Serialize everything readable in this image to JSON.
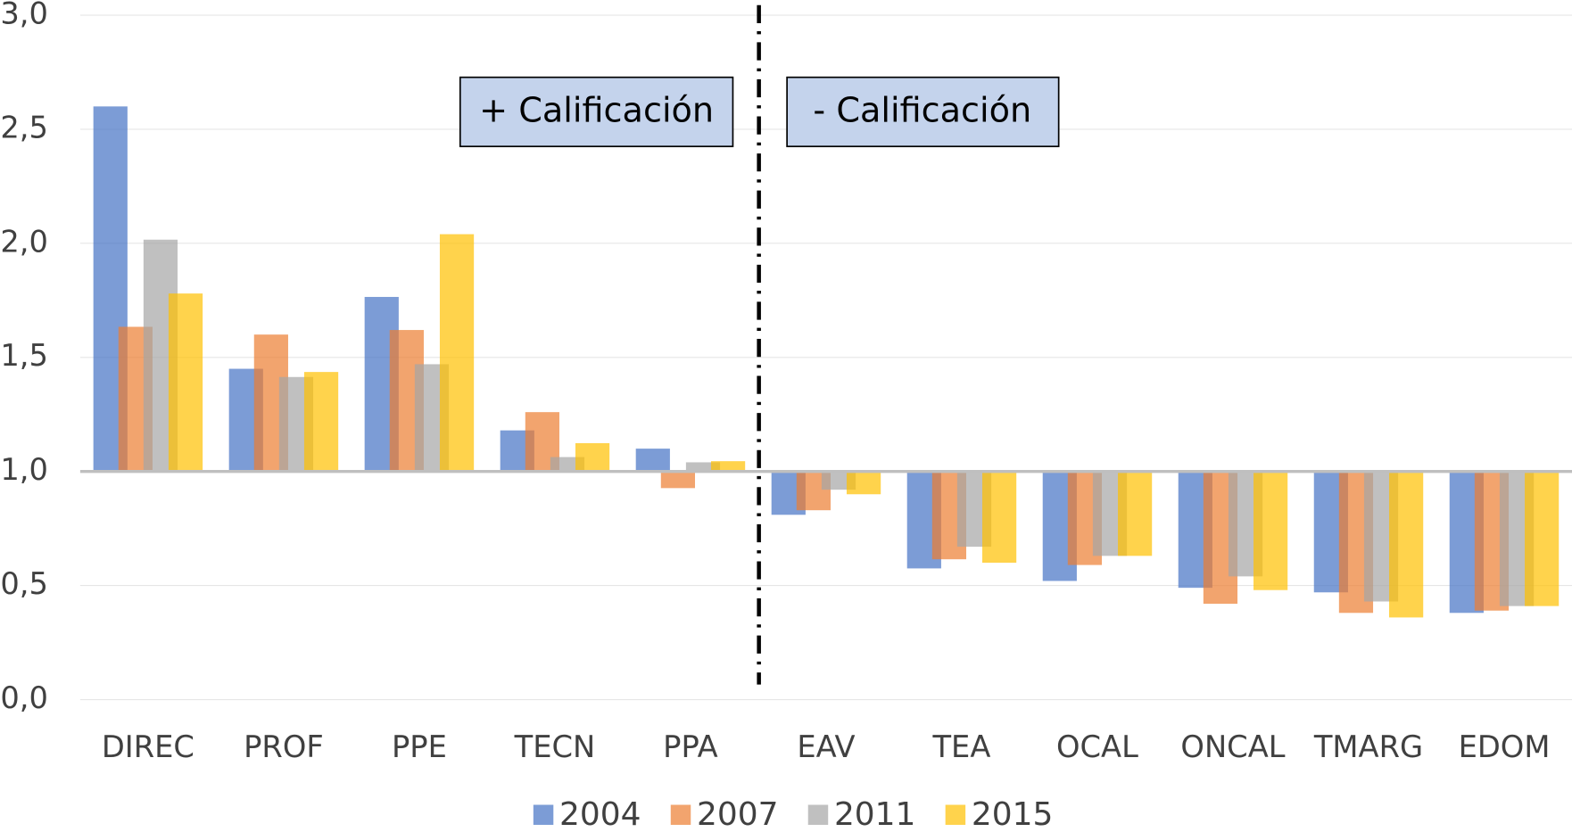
{
  "chart_data": {
    "type": "bar",
    "categories": [
      "DIREC",
      "PROF",
      "PPE",
      "TECN",
      "PPA",
      "EAV",
      "TEA",
      "OCAL",
      "ONCAL",
      "TMARG",
      "EDOM"
    ],
    "series": [
      {
        "name": "2004",
        "color": "#4472c4",
        "values": [
          2.6,
          1.45,
          1.765,
          1.18,
          1.1,
          0.81,
          0.575,
          0.52,
          0.49,
          0.47,
          0.38
        ]
      },
      {
        "name": "2007",
        "color": "#ed7d31",
        "values": [
          1.634,
          1.6,
          1.62,
          1.26,
          0.927,
          0.83,
          0.615,
          0.59,
          0.42,
          0.38,
          0.39
        ]
      },
      {
        "name": "2011",
        "color": "#a5a5a5",
        "values": [
          2.016,
          1.414,
          1.47,
          1.063,
          1.04,
          0.92,
          0.67,
          0.63,
          0.54,
          0.43,
          0.41
        ]
      },
      {
        "name": "2015",
        "color": "#ffc000",
        "values": [
          1.78,
          1.436,
          2.04,
          1.124,
          1.045,
          0.9,
          0.6,
          0.63,
          0.48,
          0.36,
          0.41
        ]
      }
    ],
    "bar_base": 1,
    "ylim": [
      0,
      3
    ],
    "yticks": [
      {
        "value": 0,
        "label": "0,0"
      },
      {
        "value": 0.5,
        "label": "0,5"
      },
      {
        "value": 1,
        "label": "1,0"
      },
      {
        "value": 1.5,
        "label": "1,5"
      },
      {
        "value": 2,
        "label": "2,0"
      },
      {
        "value": 2.5,
        "label": "2,5"
      },
      {
        "value": 3,
        "label": "3,0"
      }
    ],
    "grid": true,
    "legend": "bottom",
    "annotations": [
      "+ Calificación",
      "- Calificación"
    ]
  }
}
